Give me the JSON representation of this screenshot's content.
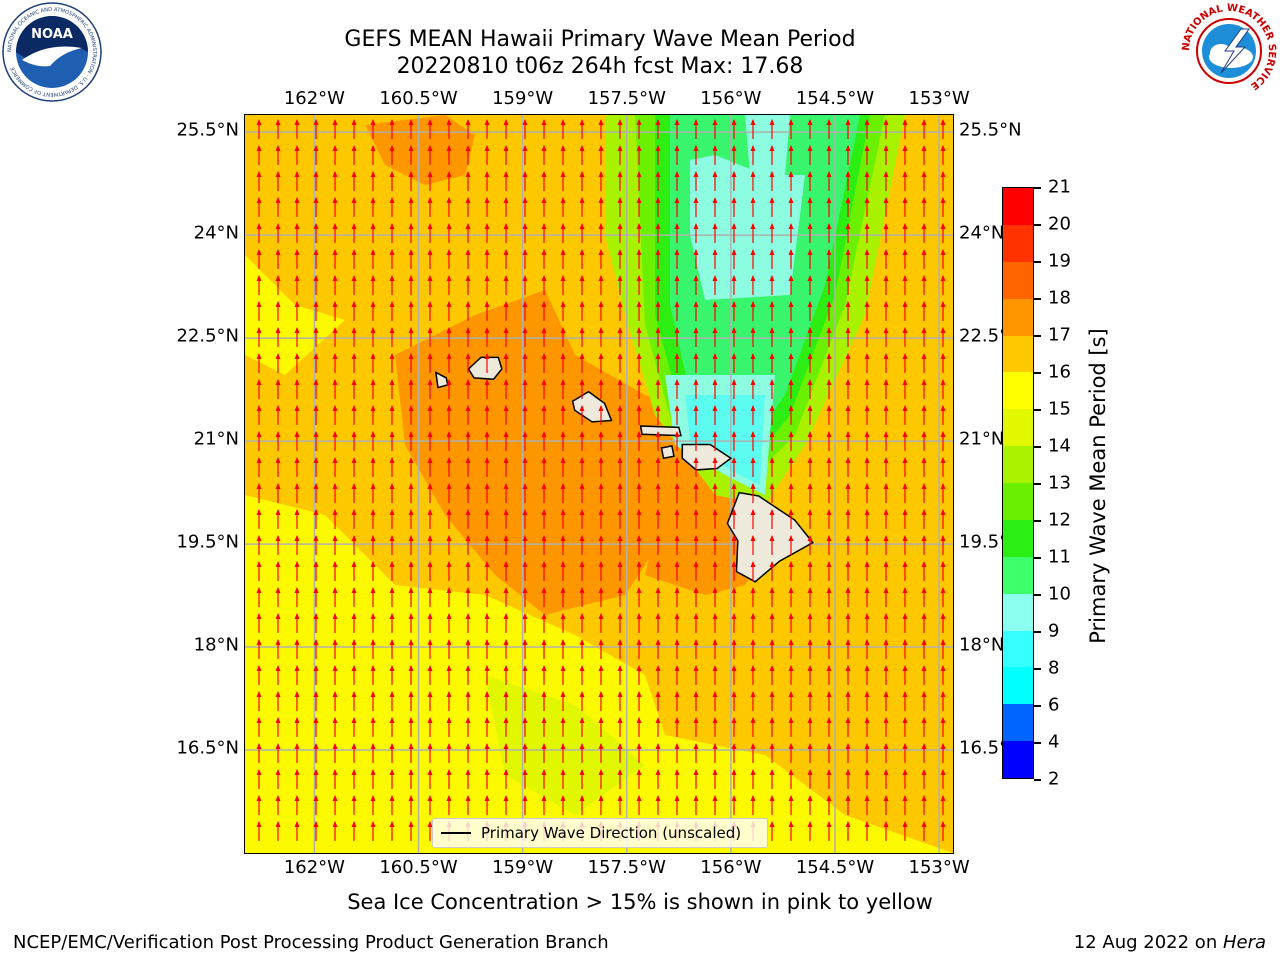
{
  "title": {
    "line1": "GEFS MEAN Hawaii Primary Wave Mean Period",
    "line2": "20220810 t06z 264h fcst   Max: 17.68"
  },
  "map": {
    "lon_labels": [
      "162°W",
      "160.5°W",
      "159°W",
      "157.5°W",
      "156°W",
      "154.5°W",
      "153°W"
    ],
    "lat_labels": [
      "25.5°N",
      "24°N",
      "22.5°N",
      "21°N",
      "19.5°N",
      "18°N",
      "16.5°N"
    ],
    "lon_range": [
      -163,
      -152.8
    ],
    "lat_range": [
      15.0,
      25.75
    ],
    "grid": true,
    "field_colors": {
      "p17_18": "#fe9600",
      "p16_17": "#fdc800",
      "p15_16": "#fdf900",
      "p14_15": "#e1f700",
      "p13_14": "#a8f200",
      "p12_13": "#6af000",
      "p11_12": "#2dee12",
      "p10_11": "#39f56d",
      "p9_10": "#8dfde2",
      "p8_9": "#5dfcf0",
      "land": "#eeeadb",
      "vector": "#ff0000"
    },
    "vector_direction": "north (from south)"
  },
  "colorbar": {
    "label": "Primary Wave Mean Period [s]",
    "ticks": [
      "2",
      "4",
      "6",
      "8",
      "9",
      "10",
      "11",
      "12",
      "13",
      "14",
      "15",
      "16",
      "17",
      "18",
      "19",
      "20",
      "21"
    ],
    "colors": [
      "#0000ff",
      "#0064ff",
      "#00ffff",
      "#35ffff",
      "#8bfff0",
      "#3dff6a",
      "#2bef14",
      "#6aef00",
      "#a9f300",
      "#e1f800",
      "#ffff00",
      "#ffc800",
      "#ff9600",
      "#ff6400",
      "#ff3200",
      "#ff0000"
    ]
  },
  "legend": {
    "label": "Primary Wave Direction (unscaled)"
  },
  "note": "Sea Ice Concentration > 15% is shown in pink to yellow",
  "footer": {
    "left": "NCEP/EMC/Verification Post Processing Product Generation Branch",
    "right_date": "12 Aug 2022 on ",
    "right_machine": "Hera"
  },
  "logos": {
    "noaa_text": "NOAA",
    "noaa_ring": "NATIONAL OCEANIC AND ATMOSPHERIC ADMINISTRATION · U.S. DEPARTMENT OF COMMERCE",
    "nws_ring": "NATIONAL WEATHER SERVICE"
  }
}
